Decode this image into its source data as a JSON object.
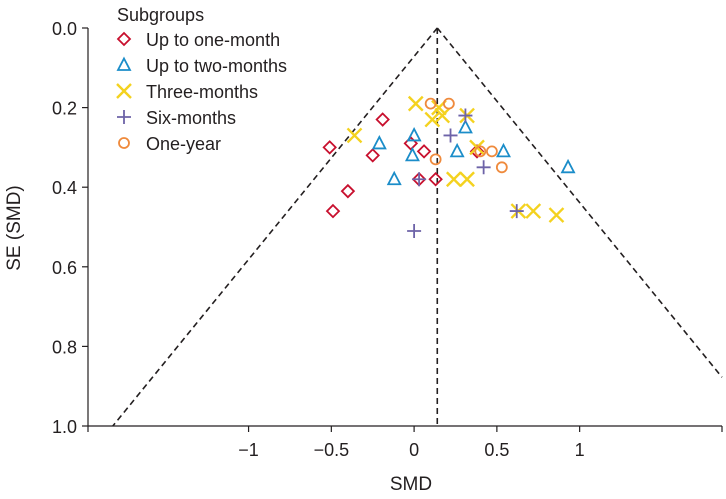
{
  "chart_data": {
    "type": "scatter",
    "title": "",
    "xlabel": "SMD",
    "ylabel": "SE (SMD)",
    "xlim": [
      -1.97,
      1.86
    ],
    "ylim": [
      0.0,
      1.0
    ],
    "y_inverted": true,
    "x_ticks": [
      -1,
      -0.5,
      0,
      0.5,
      1
    ],
    "x_tick_labels": [
      "−1",
      "−0.5",
      "0",
      "0.5",
      "1"
    ],
    "y_ticks": [
      0.0,
      0.2,
      0.4,
      0.6,
      0.8,
      1.0
    ],
    "y_tick_labels": [
      "0.0",
      "0.2",
      "0.4",
      "0.6",
      "0.8",
      "1.0"
    ],
    "pooled_estimate": 0.14,
    "funnel": "pseudo 95% confidence limits (dashed)",
    "legend": {
      "title": "Subgroups",
      "position": "top-left"
    },
    "series": [
      {
        "name": "Up to one-month",
        "marker": "diamond",
        "color": "#c8102e",
        "points": [
          {
            "x": -0.51,
            "y": 0.3
          },
          {
            "x": -0.19,
            "y": 0.23
          },
          {
            "x": -0.25,
            "y": 0.32
          },
          {
            "x": -0.02,
            "y": 0.29
          },
          {
            "x": 0.06,
            "y": 0.31
          },
          {
            "x": -0.4,
            "y": 0.41
          },
          {
            "x": -0.49,
            "y": 0.46
          },
          {
            "x": 0.03,
            "y": 0.38
          },
          {
            "x": 0.13,
            "y": 0.38
          },
          {
            "x": 0.38,
            "y": 0.31
          }
        ]
      },
      {
        "name": "Up to two-months",
        "marker": "triangle",
        "color": "#1b8dc9",
        "points": [
          {
            "x": 0.0,
            "y": 0.27
          },
          {
            "x": -0.21,
            "y": 0.29
          },
          {
            "x": -0.01,
            "y": 0.32
          },
          {
            "x": 0.31,
            "y": 0.25
          },
          {
            "x": 0.26,
            "y": 0.31
          },
          {
            "x": 0.54,
            "y": 0.31
          },
          {
            "x": 0.93,
            "y": 0.35
          },
          {
            "x": -0.12,
            "y": 0.38
          }
        ]
      },
      {
        "name": "Three-months",
        "marker": "x",
        "color": "#f4d21f",
        "points": [
          {
            "x": 0.01,
            "y": 0.19
          },
          {
            "x": 0.15,
            "y": 0.2
          },
          {
            "x": 0.11,
            "y": 0.23
          },
          {
            "x": 0.17,
            "y": 0.22
          },
          {
            "x": 0.32,
            "y": 0.22
          },
          {
            "x": -0.36,
            "y": 0.27
          },
          {
            "x": 0.38,
            "y": 0.3
          },
          {
            "x": 0.24,
            "y": 0.38
          },
          {
            "x": 0.32,
            "y": 0.38
          },
          {
            "x": 0.63,
            "y": 0.46
          },
          {
            "x": 0.72,
            "y": 0.46
          },
          {
            "x": 0.86,
            "y": 0.47
          }
        ]
      },
      {
        "name": "Six-months",
        "marker": "plus",
        "color": "#6d63a8",
        "points": [
          {
            "x": 0.31,
            "y": 0.22
          },
          {
            "x": 0.22,
            "y": 0.27
          },
          {
            "x": 0.42,
            "y": 0.35
          },
          {
            "x": 0.03,
            "y": 0.38
          },
          {
            "x": 0.62,
            "y": 0.46
          },
          {
            "x": 0.0,
            "y": 0.51
          }
        ]
      },
      {
        "name": "One-year",
        "marker": "circle",
        "color": "#ef8a3c",
        "points": [
          {
            "x": 0.1,
            "y": 0.19
          },
          {
            "x": 0.21,
            "y": 0.19
          },
          {
            "x": 0.13,
            "y": 0.33
          },
          {
            "x": 0.47,
            "y": 0.31
          },
          {
            "x": 0.53,
            "y": 0.35
          },
          {
            "x": 0.4,
            "y": 0.31
          }
        ]
      }
    ]
  }
}
